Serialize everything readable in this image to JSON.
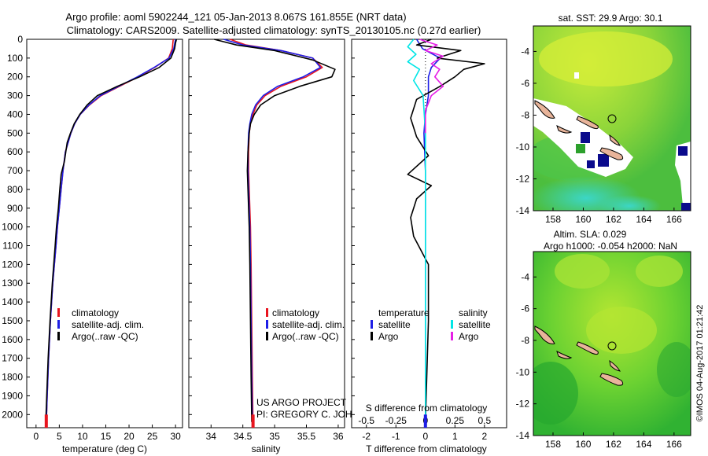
{
  "header": {
    "line1": "Argo profile: aoml 5902244_121 05-Jan-2013 8.067S 161.855E (NRT data)",
    "line2": "Climatology: CARS2009. Satellite-adjusted climatology: synTS_20130105.nc (0.27d earlier)"
  },
  "watermark": "©IMOS 04-Aug-2017 01:21:42",
  "chart_data": [
    {
      "type": "line",
      "id": "temperature-profile",
      "xlabel": "temperature (deg C)",
      "ylabel": "",
      "xlim": [
        -2,
        31.5
      ],
      "ylim": [
        2070,
        0
      ],
      "xticks": [
        0,
        5,
        10,
        15,
        20,
        25,
        30
      ],
      "xticklabels": [
        "0",
        "5",
        "10",
        "15",
        "20",
        "25",
        "30"
      ],
      "yticks": [
        0,
        100,
        200,
        300,
        400,
        500,
        600,
        700,
        800,
        900,
        1000,
        1100,
        1200,
        1300,
        1400,
        1500,
        1600,
        1700,
        1800,
        1900,
        2000
      ],
      "yticklabels": [
        "0",
        "100",
        "200",
        "300",
        "400",
        "500",
        "600",
        "700",
        "800",
        "900",
        "1000",
        "1100",
        "1200",
        "1300",
        "1400",
        "1500",
        "1600",
        "1700",
        "1800",
        "1900",
        "2000"
      ],
      "legend": [
        "climatology",
        "satellite-adj. clim.",
        "Argo(..raw -QC)"
      ],
      "legend_colors": [
        "#e8141e",
        "#1e1ee6",
        "#000000"
      ],
      "series": [
        {
          "name": "climatology",
          "color": "#e8141e",
          "x": [
            29.5,
            29.3,
            28.5,
            25.5,
            22,
            18,
            14,
            11.5,
            9.5,
            8.3,
            7.5,
            6.9,
            6.3,
            5.8,
            5.4,
            5.0,
            4.6,
            4.3,
            3.6,
            3.1,
            2.7,
            2.4,
            2.2
          ],
          "y": [
            0,
            50,
            100,
            150,
            200,
            250,
            300,
            350,
            400,
            450,
            500,
            550,
            600,
            700,
            800,
            900,
            1000,
            1100,
            1300,
            1500,
            1700,
            1900,
            2050
          ]
        },
        {
          "name": "satellite-adj. clim.",
          "color": "#1e1ee6",
          "x": [
            30.0,
            29.6,
            28.6,
            25.4,
            21.8,
            17.8,
            13.8,
            11.4,
            9.5,
            8.3,
            7.5,
            6.9,
            6.3,
            5.8,
            5.4,
            5.0,
            4.6,
            4.3,
            3.6,
            3.1,
            2.7,
            2.4,
            2.2
          ],
          "y": [
            0,
            50,
            100,
            150,
            200,
            250,
            300,
            350,
            400,
            450,
            500,
            550,
            600,
            700,
            800,
            900,
            1000,
            1100,
            1300,
            1500,
            1700,
            1900,
            2050
          ]
        },
        {
          "name": "Argo(..raw -QC)",
          "color": "#000000",
          "x": [
            30.2,
            30.0,
            29.8,
            29.0,
            26.5,
            22.3,
            17.5,
            13.2,
            11.0,
            9.4,
            8.2,
            7.4,
            6.7,
            6.1,
            5.4,
            5.1,
            4.8,
            4.4,
            4.1,
            3.5,
            3.0,
            2.6,
            2.3,
            2.1
          ],
          "y": [
            0,
            20,
            50,
            100,
            150,
            200,
            250,
            300,
            350,
            400,
            450,
            500,
            550,
            650,
            720,
            800,
            900,
            1000,
            1100,
            1300,
            1500,
            1700,
            1900,
            2040
          ]
        }
      ]
    },
    {
      "type": "line",
      "id": "salinity-profile",
      "xlabel": "salinity",
      "ylabel": "",
      "xlim": [
        33.65,
        36.1
      ],
      "ylim": [
        2070,
        0
      ],
      "xticks": [
        34,
        34.5,
        35,
        35.5,
        36
      ],
      "xticklabels": [
        "34",
        "34.5",
        "35",
        "35.5",
        "36"
      ],
      "legend": [
        "climatology",
        "satellite-adj. clim.",
        "Argo(..raw -QC)"
      ],
      "legend_colors": [
        "#e8141e",
        "#1e1ee6",
        "#000000"
      ],
      "annotation": [
        "US ARGO PROJECT",
        "PI: GREGORY C. JOHNSON"
      ],
      "series": [
        {
          "name": "climatology",
          "color": "#e8141e",
          "x": [
            34.3,
            34.55,
            35.1,
            35.6,
            35.75,
            35.5,
            35.1,
            34.85,
            34.72,
            34.66,
            34.62,
            34.6,
            34.59,
            34.59,
            34.6,
            34.61,
            34.62,
            34.63,
            34.64,
            34.65,
            34.66
          ],
          "y": [
            0,
            30,
            60,
            100,
            150,
            200,
            250,
            300,
            350,
            400,
            450,
            500,
            600,
            700,
            800,
            900,
            1000,
            1200,
            1500,
            1800,
            2050
          ]
        },
        {
          "name": "satellite-adj. clim.",
          "color": "#1e1ee6",
          "x": [
            34.2,
            34.5,
            35.1,
            35.6,
            35.72,
            35.45,
            35.05,
            34.82,
            34.7,
            34.64,
            34.61,
            34.59,
            34.58,
            34.58,
            34.59,
            34.6,
            34.61,
            34.62,
            34.63,
            34.64,
            34.65
          ],
          "y": [
            0,
            30,
            60,
            100,
            150,
            200,
            250,
            300,
            350,
            400,
            450,
            500,
            600,
            700,
            800,
            900,
            1000,
            1200,
            1500,
            1800,
            2050
          ]
        },
        {
          "name": "Argo(..raw -QC)",
          "color": "#000000",
          "x": [
            34.05,
            34.4,
            35.0,
            35.6,
            35.95,
            35.9,
            35.4,
            35.0,
            34.78,
            34.68,
            34.62,
            34.6,
            34.58,
            34.57,
            34.58,
            34.59,
            34.6,
            34.61,
            34.62,
            34.63,
            34.64
          ],
          "y": [
            0,
            30,
            60,
            110,
            160,
            200,
            250,
            300,
            350,
            400,
            450,
            500,
            600,
            700,
            800,
            900,
            1000,
            1200,
            1500,
            1800,
            2040
          ]
        }
      ]
    },
    {
      "type": "line",
      "id": "difference-profile",
      "xlabel_top": "S difference from climatology",
      "xlabel": "T difference from climatology",
      "t_xlim": [
        -2.5,
        2.75
      ],
      "t_xticks": [
        -2,
        -1,
        0,
        1,
        2
      ],
      "t_xticklabels": [
        "-2",
        "-1",
        "0",
        "1",
        "2"
      ],
      "s_xticks": [
        -0.5,
        -0.25,
        0,
        0.25,
        0.5
      ],
      "s_xticklabels": [
        "-0.5",
        "-0.25",
        "0",
        "0.25",
        "0.5"
      ],
      "s_scale_in_t_units": 4,
      "ylim": [
        2070,
        0
      ],
      "legend_headers": [
        "temperature",
        "salinity"
      ],
      "legend": [
        "satellite",
        "Argo",
        "satellite",
        "Argo"
      ],
      "legend_colors": [
        "#1e1ee6",
        "#000000",
        "#00e6e6",
        "#e61ee6"
      ],
      "series": [
        {
          "name": "temperature satellite",
          "color": "#1e1ee6",
          "x": [
            -0.3,
            -0.1,
            0.5,
            0.2,
            0.1,
            0.1,
            0.0,
            -0.05,
            0.0,
            0.0,
            0.0,
            0.0,
            0.0,
            0.0
          ],
          "y": [
            0,
            50,
            100,
            150,
            200,
            300,
            400,
            500,
            700,
            900,
            1200,
            1500,
            1800,
            2040
          ]
        },
        {
          "name": "temperature Argo",
          "color": "#000000",
          "x": [
            0.2,
            -0.3,
            1.2,
            0.4,
            2.0,
            1.3,
            1.0,
            0.5,
            -0.3,
            -0.5,
            -0.3,
            0.1,
            -0.6,
            0.2,
            -0.3,
            -0.5,
            -0.4,
            0.1,
            0.1,
            0.0
          ],
          "y": [
            0,
            30,
            60,
            100,
            130,
            160,
            200,
            250,
            320,
            420,
            520,
            620,
            720,
            780,
            850,
            950,
            1050,
            1200,
            1500,
            2040
          ]
        },
        {
          "name": "salinity satellite",
          "color": "#00e6e6",
          "x": [
            -0.1,
            -0.15,
            -0.08,
            -0.15,
            -0.05,
            -0.1,
            -0.02,
            0,
            0,
            0
          ],
          "y": [
            0,
            40,
            80,
            120,
            160,
            220,
            300,
            500,
            1000,
            2040
          ]
        },
        {
          "name": "salinity Argo",
          "color": "#e61ee6",
          "x": [
            -0.05,
            0.1,
            0.0,
            0.15,
            0.05,
            0.12,
            0.08,
            0.15,
            0.05,
            0.0,
            0.0
          ],
          "y": [
            0,
            30,
            60,
            90,
            130,
            160,
            200,
            250,
            300,
            380,
            500
          ]
        }
      ]
    },
    {
      "type": "heatmap",
      "id": "sst-map",
      "title": "sat. SST: 29.9  Argo: 30.1",
      "xlim": [
        156.7,
        167.1
      ],
      "ylim": [
        -14,
        -2.4
      ],
      "xticks": [
        158,
        160,
        162,
        164,
        166
      ],
      "xticklabels": [
        "158",
        "160",
        "162",
        "164",
        "166"
      ],
      "yticks": [
        -4,
        -6,
        -8,
        -10,
        -12,
        -14
      ],
      "yticklabels": [
        "-4",
        "-6",
        "-8",
        "-10",
        "-12",
        "-14"
      ],
      "argo_position": [
        161.855,
        -8.067
      ]
    },
    {
      "type": "heatmap",
      "id": "sla-map",
      "title": "Altim. SLA: 0.029",
      "subtitle": "Argo h1000: -0.054  h2000: NaN",
      "xlim": [
        156.7,
        167.1
      ],
      "ylim": [
        -14,
        -2.4
      ],
      "xticks": [
        158,
        160,
        162,
        164,
        166
      ],
      "xticklabels": [
        "158",
        "160",
        "162",
        "164",
        "166"
      ],
      "yticks": [
        -4,
        -6,
        -8,
        -10,
        -12,
        -14
      ],
      "yticklabels": [
        "-4",
        "-6",
        "-8",
        "-10",
        "-12",
        "-14"
      ],
      "argo_position": [
        161.855,
        -8.067
      ]
    }
  ]
}
